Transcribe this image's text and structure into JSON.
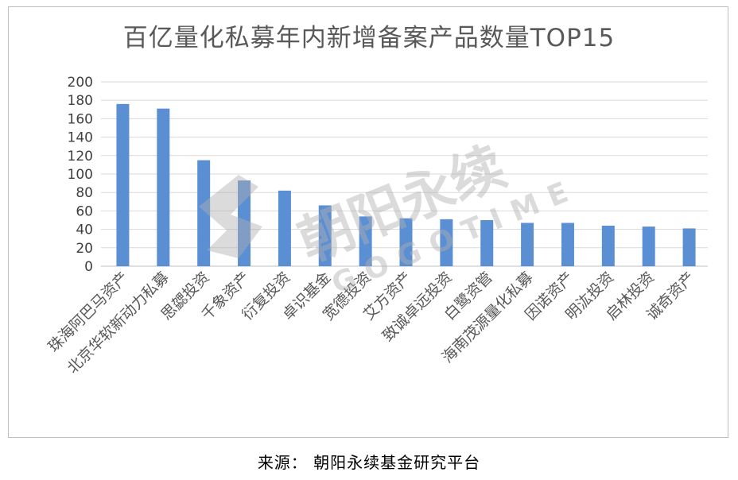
{
  "chart_data": {
    "type": "bar",
    "title": "百亿量化私募年内新增备案产品数量TOP15",
    "categories": [
      "珠海阿巴马资产",
      "北京华软新动力私募",
      "思勰投资",
      "千象资产",
      "衍复投资",
      "卓识基金",
      "宽德投资",
      "艾方资产",
      "致诚卓远投资",
      "白鹭资管",
      "海南茂源量化私募",
      "因诺资产",
      "明汯投资",
      "启林投资",
      "诚奇资产"
    ],
    "values": [
      176,
      171,
      115,
      93,
      82,
      66,
      54,
      52,
      51,
      50,
      47,
      47,
      44,
      43,
      41
    ],
    "ylim": [
      0,
      200
    ],
    "yticks": [
      0,
      20,
      40,
      60,
      80,
      100,
      120,
      140,
      160,
      180,
      200
    ],
    "grid": true,
    "bar_color": "#5b8fd4",
    "xlabel": "",
    "ylabel": ""
  },
  "watermark": {
    "brand_cn": "朝阳永续",
    "brand_en": "GOGOTIME",
    "color": "#b0b0b0"
  },
  "source": "来源： 朝阳永续基金研究平台"
}
